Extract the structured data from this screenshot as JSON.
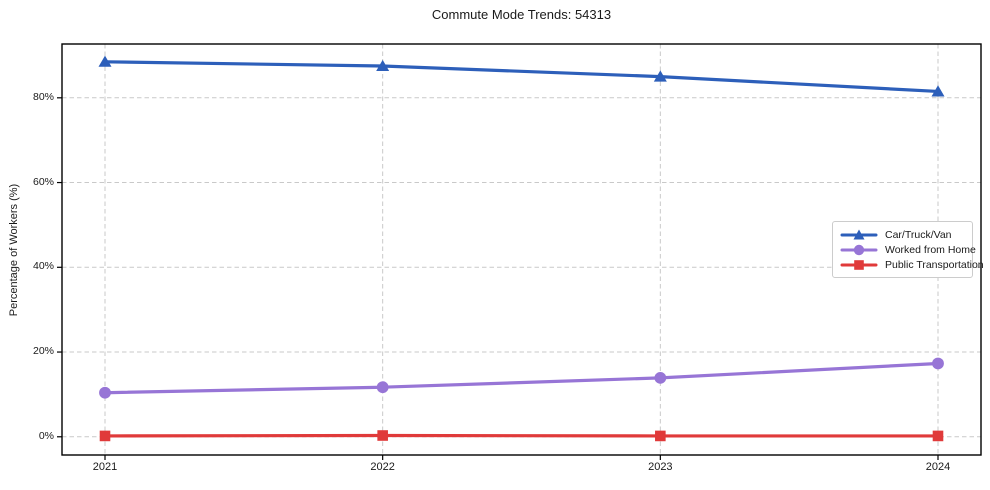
{
  "chart_data": {
    "type": "line",
    "title": "Commute Mode Trends: 54313",
    "xlabel": "",
    "ylabel": "Percentage of Workers (%)",
    "categories": [
      "2021",
      "2022",
      "2023",
      "2024"
    ],
    "series": [
      {
        "name": "Car/Truck/Van",
        "color": "#2d5fba",
        "marker": "triangle",
        "values": [
          88.5,
          87.5,
          85.0,
          81.5
        ]
      },
      {
        "name": "Worked from Home",
        "color": "#9775d6",
        "marker": "circle",
        "values": [
          10.4,
          11.7,
          13.9,
          17.3
        ]
      },
      {
        "name": "Public Transportation",
        "color": "#e03a3a",
        "marker": "square",
        "values": [
          0.2,
          0.3,
          0.2,
          0.2
        ]
      }
    ],
    "yticks": [
      0,
      20,
      40,
      60,
      80
    ],
    "ytick_labels": [
      "0%",
      "20%",
      "40%",
      "60%",
      "80%"
    ],
    "ylim": [
      -4.3,
      92.7
    ],
    "grid": true,
    "grid_color": "#c9c9c9",
    "spine_color": "#000000",
    "legend_position": "center right"
  }
}
